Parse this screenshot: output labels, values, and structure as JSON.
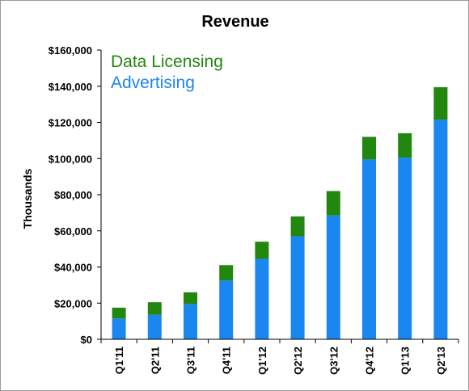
{
  "chart_data": {
    "type": "bar",
    "stacked": true,
    "title": "Revenue",
    "xlabel": "",
    "ylabel": "Thousands",
    "ylim": [
      0,
      160000
    ],
    "y_ticks": [
      0,
      20000,
      40000,
      60000,
      80000,
      100000,
      120000,
      140000,
      160000
    ],
    "y_tick_labels": [
      "$0",
      "$20,000",
      "$40,000",
      "$60,000",
      "$80,000",
      "$100,000",
      "$120,000",
      "$140,000",
      "$160,000"
    ],
    "categories": [
      "Q1'11",
      "Q2'11",
      "Q3'11",
      "Q4'11",
      "Q1'12",
      "Q2'12",
      "Q3'12",
      "Q4'12",
      "Q1'13",
      "Q2'13"
    ],
    "series": [
      {
        "name": "Advertising",
        "color": "#1a86f0",
        "values": [
          11500,
          13500,
          19500,
          32500,
          44500,
          57000,
          68500,
          99500,
          100500,
          121500
        ]
      },
      {
        "name": "Data Licensing",
        "color": "#22870f",
        "values": [
          6000,
          7000,
          6500,
          8500,
          9500,
          11000,
          13500,
          12500,
          13500,
          18000
        ]
      }
    ],
    "legend": {
      "placement": "top-left",
      "entries": [
        {
          "label": "Data Licensing",
          "color": "#22870f"
        },
        {
          "label": "Advertising",
          "color": "#1a86f0"
        }
      ]
    },
    "grid": false
  }
}
